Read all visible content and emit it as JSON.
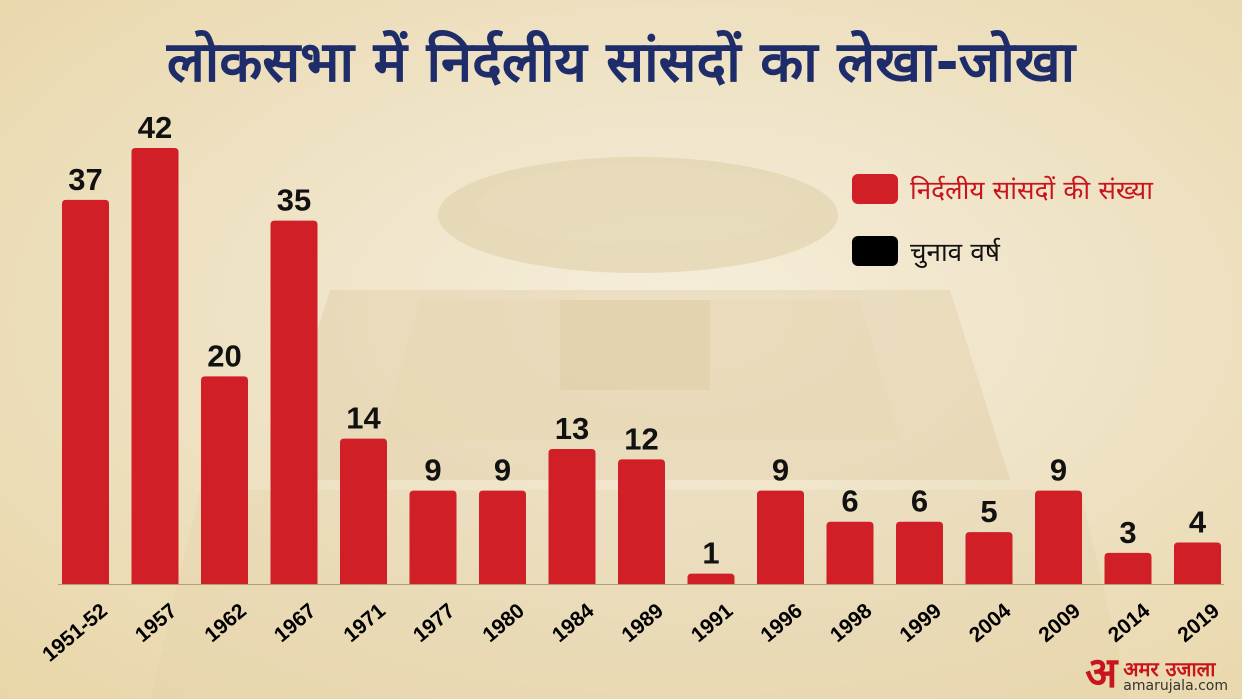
{
  "title": "लोकसभा में निर्दलीय सांसदों का लेखा-जोखा",
  "legend": {
    "count_label": "निर्दलीय सांसदों की संख्या",
    "year_label": "चुनाव वर्ष"
  },
  "brand": {
    "mark": "अ",
    "hindi": "अमर उजाला",
    "url": "amarujala.com"
  },
  "colors": {
    "bar": "#d01f26",
    "title": "#1f2c6a",
    "legend_black": "#000000"
  },
  "chart_data": {
    "type": "bar",
    "title": "लोकसभा में निर्दलीय सांसदों का लेखा-जोखा",
    "categories": [
      "1951-52",
      "1957",
      "1962",
      "1967",
      "1971",
      "1977",
      "1980",
      "1984",
      "1989",
      "1991",
      "1996",
      "1998",
      "1999",
      "2004",
      "2009",
      "2014",
      "2019"
    ],
    "series": [
      {
        "name": "निर्दलीय सांसदों की संख्या",
        "values": [
          37,
          42,
          20,
          35,
          14,
          9,
          9,
          13,
          12,
          1,
          9,
          6,
          6,
          5,
          9,
          3,
          4
        ]
      }
    ],
    "xlabel": "",
    "ylabel": "",
    "ylim": [
      0,
      42
    ],
    "grid": false,
    "legend_position": "top-right",
    "data_labels": true
  }
}
